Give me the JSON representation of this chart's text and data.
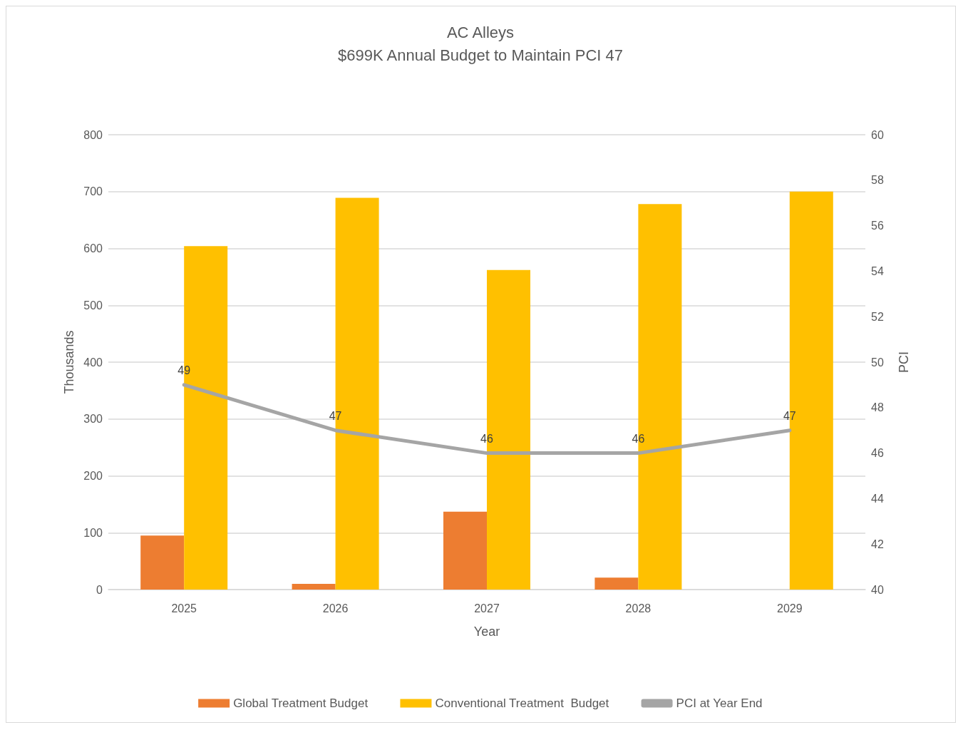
{
  "chart_data": {
    "type": "bar",
    "title": "AC Alleys",
    "subtitle": "$699K Annual Budget to Maintain PCI 47",
    "xlabel": "Year",
    "ylabel": "Thousands",
    "y2label": "PCI",
    "categories": [
      "2025",
      "2026",
      "2027",
      "2028",
      "2029"
    ],
    "series": [
      {
        "name": "Global Treatment Budget",
        "color": "#ed7d31",
        "values": [
          95,
          10,
          137,
          21,
          0
        ]
      },
      {
        "name": "Conventional Treatment  Budget",
        "color": "#ffc000",
        "values": [
          604,
          689,
          562,
          678,
          700
        ]
      },
      {
        "name": "PCI at Year End",
        "type": "line",
        "axis": "y2",
        "color": "#a5a5a5",
        "marker": "none",
        "line_style": "solid",
        "values": [
          49,
          47,
          46,
          46,
          47
        ],
        "value_labels": [
          "49",
          "47",
          "46",
          "46",
          "47"
        ]
      }
    ],
    "ylim": [
      0,
      800
    ],
    "yticks": [
      0,
      100,
      200,
      300,
      400,
      500,
      600,
      700,
      800
    ],
    "y2lim": [
      40,
      60
    ],
    "y2ticks": [
      40,
      42,
      44,
      46,
      48,
      50,
      52,
      54,
      56,
      58,
      60
    ],
    "grid": "y",
    "legend": "bottom"
  }
}
